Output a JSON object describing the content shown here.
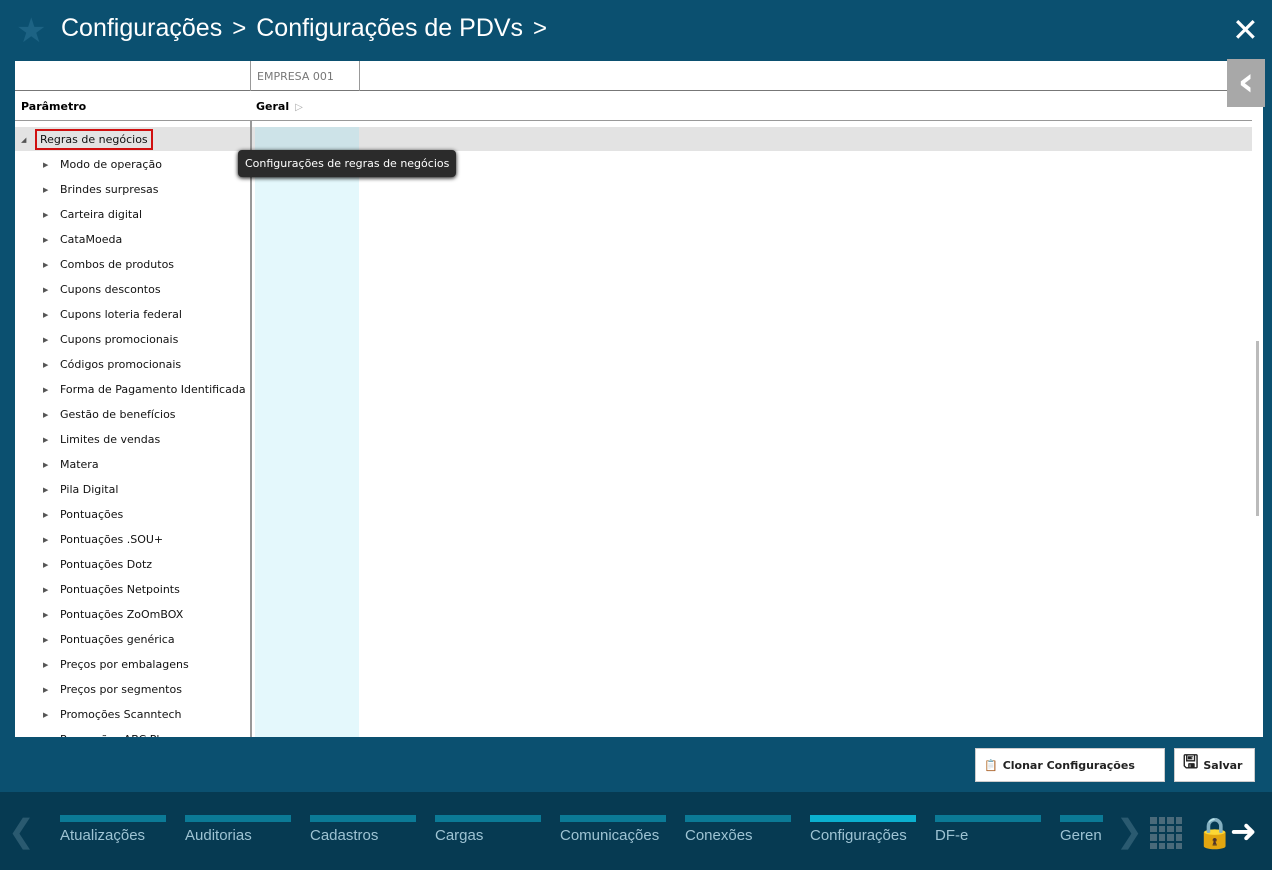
{
  "header": {
    "crumbs": [
      "Configurações",
      "Configurações de PDVs"
    ],
    "separator": ">",
    "close_icon": "close-icon",
    "star_icon": "star-icon"
  },
  "grid": {
    "company": "EMPRESA 001",
    "param_header": "Parâmetro",
    "group_header": "Geral"
  },
  "tree": {
    "root": "Regras de negócios",
    "items": [
      "Modo de operação",
      "Brindes surpresas",
      "Carteira digital",
      "CataMoeda",
      "Combos de produtos",
      "Cupons descontos",
      "Cupons loteria federal",
      "Cupons promocionais",
      "Códigos promocionais",
      "Forma de Pagamento Identificada",
      "Gestão de benefícios",
      "Limites de vendas",
      "Matera",
      "Pila Digital",
      "Pontuações",
      "Pontuações .SOU+",
      "Pontuações Dotz",
      "Pontuações Netpoints",
      "Pontuações ZoOmBOX",
      "Pontuações genérica",
      "Preços por embalagens",
      "Preços por segmentos",
      "Promoções Scanntech",
      "Promoções ABC Pl"
    ]
  },
  "tooltip": "Configurações de regras de negócios",
  "actions": {
    "clone": "Clonar Configurações",
    "save": "Salvar"
  },
  "bottom_nav": {
    "items": [
      "Atualizações",
      "Auditorias",
      "Cadastros",
      "Cargas",
      "Comunicações",
      "Conexões",
      "Configurações",
      "DF-e",
      "Geren"
    ],
    "active": "Configurações"
  },
  "colors": {
    "header_bg": "#0b5070",
    "bottom_bg": "#063a52",
    "active_tab": "#0bb0cf",
    "highlight": "#d01010"
  }
}
